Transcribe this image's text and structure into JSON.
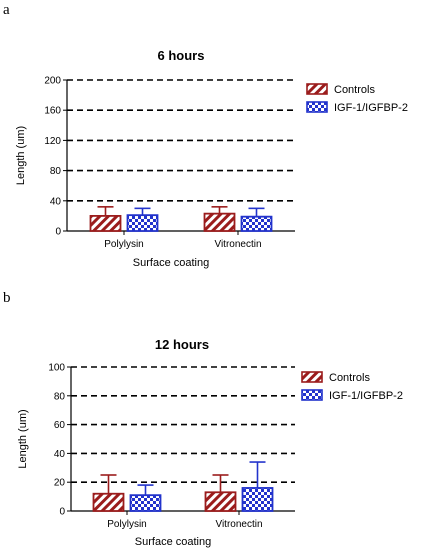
{
  "panels": [
    {
      "letter": "a",
      "chart_data": {
        "type": "bar",
        "title": "6 hours",
        "xlabel": "Surface coating",
        "ylabel": "Length (um)",
        "categories": [
          "Polylysin",
          "Vitronectin"
        ],
        "ylim": [
          0,
          200
        ],
        "yticks": [
          0,
          40,
          80,
          120,
          160,
          200
        ],
        "grid": "dashed horizontal",
        "legend_position": "top-right",
        "series": [
          {
            "name": "Controls",
            "values": [
              20,
              23
            ],
            "errors": [
              12,
              9
            ],
            "color": "#9b1c1c",
            "pattern": "diagonal"
          },
          {
            "name": "IGF-1/IGFBP-2",
            "values": [
              21,
              19
            ],
            "errors": [
              9,
              11
            ],
            "color": "#2233cc",
            "pattern": "checker"
          }
        ]
      }
    },
    {
      "letter": "b",
      "chart_data": {
        "type": "bar",
        "title": "12 hours",
        "xlabel": "Surface coating",
        "ylabel": "Length (um)",
        "categories": [
          "Polylysin",
          "Vitronectin"
        ],
        "ylim": [
          0,
          100
        ],
        "yticks": [
          0,
          20,
          40,
          60,
          80,
          100
        ],
        "grid": "dashed horizontal",
        "legend_position": "top-right",
        "series": [
          {
            "name": "Controls",
            "values": [
              12,
              13
            ],
            "errors": [
              13,
              12
            ],
            "color": "#9b1c1c",
            "pattern": "diagonal"
          },
          {
            "name": "IGF-1/IGFBP-2",
            "values": [
              11,
              16
            ],
            "errors": [
              7,
              18
            ],
            "color": "#2233cc",
            "pattern": "checker"
          }
        ]
      }
    }
  ]
}
